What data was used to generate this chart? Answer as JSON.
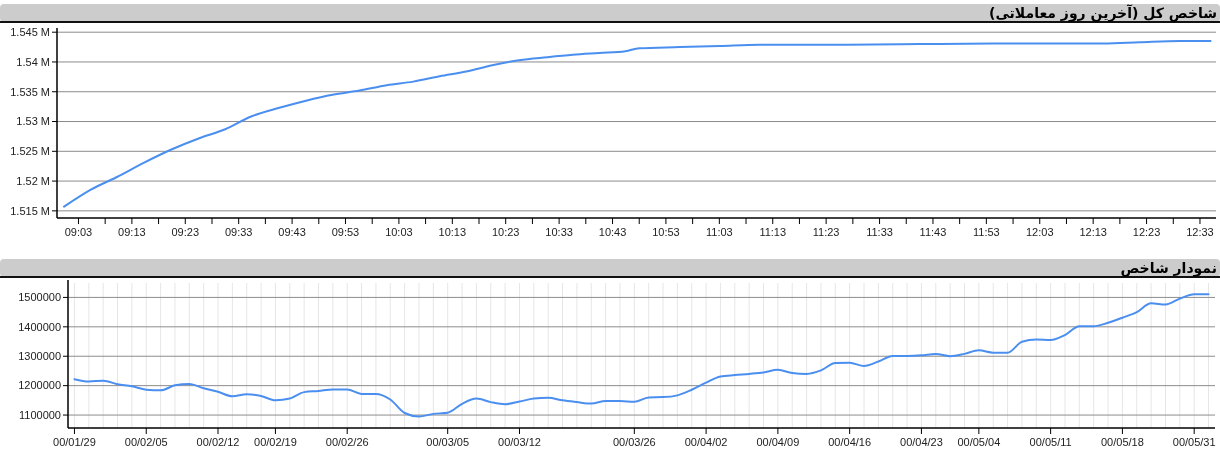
{
  "chart_data": [
    {
      "type": "line",
      "title": "شاخص کل (آخرین روز معاملاتی)",
      "grid": "y",
      "xlim": [
        8.983,
        12.6
      ],
      "x": [
        9.005,
        9.09,
        9.167,
        9.255,
        9.34,
        9.427,
        9.508,
        9.587,
        9.677,
        9.76,
        9.843,
        9.927,
        10.012,
        10.095,
        10.177,
        10.26,
        10.345,
        10.425,
        10.513,
        10.593,
        10.675,
        10.757,
        10.8,
        10.927,
        11.052,
        11.177,
        11.427,
        11.677,
        11.927,
        12.25,
        12.362,
        12.487,
        12.583
      ],
      "series": [
        {
          "color": "#4a8ff0",
          "values": [
            1515700,
            1518600,
            1520600,
            1523100,
            1525300,
            1527200,
            1528700,
            1530800,
            1532300,
            1533500,
            1534500,
            1535200,
            1536100,
            1536700,
            1537600,
            1538400,
            1539500,
            1540300,
            1540800,
            1541200,
            1541500,
            1541800,
            1542300,
            1542500,
            1542700,
            1542900,
            1542900,
            1543000,
            1543100,
            1543100,
            1543300,
            1543500,
            1543500
          ]
        }
      ],
      "xticks": [
        {
          "value": 9.05,
          "label": "09:03"
        },
        {
          "value": 9.1333,
          "label": null
        },
        {
          "value": 9.2167,
          "label": "09:13"
        },
        {
          "value": 9.3,
          "label": null
        },
        {
          "value": 9.3833,
          "label": "09:23"
        },
        {
          "value": 9.4667,
          "label": null
        },
        {
          "value": 9.55,
          "label": "09:33"
        },
        {
          "value": 9.6333,
          "label": null
        },
        {
          "value": 9.7167,
          "label": "09:43"
        },
        {
          "value": 9.8,
          "label": null
        },
        {
          "value": 9.8833,
          "label": "09:53"
        },
        {
          "value": 9.9667,
          "label": null
        },
        {
          "value": 10.05,
          "label": "10:03"
        },
        {
          "value": 10.1333,
          "label": null
        },
        {
          "value": 10.2167,
          "label": "10:13"
        },
        {
          "value": 10.3,
          "label": null
        },
        {
          "value": 10.3833,
          "label": "10:23"
        },
        {
          "value": 10.4667,
          "label": null
        },
        {
          "value": 10.55,
          "label": "10:33"
        },
        {
          "value": 10.6333,
          "label": null
        },
        {
          "value": 10.7167,
          "label": "10:43"
        },
        {
          "value": 10.8,
          "label": null
        },
        {
          "value": 10.8833,
          "label": "10:53"
        },
        {
          "value": 10.9667,
          "label": null
        },
        {
          "value": 11.05,
          "label": "11:03"
        },
        {
          "value": 11.1333,
          "label": null
        },
        {
          "value": 11.2167,
          "label": "11:13"
        },
        {
          "value": 11.3,
          "label": null
        },
        {
          "value": 11.3833,
          "label": "11:23"
        },
        {
          "value": 11.4667,
          "label": null
        },
        {
          "value": 11.55,
          "label": "11:33"
        },
        {
          "value": 11.6333,
          "label": null
        },
        {
          "value": 11.7167,
          "label": "11:43"
        },
        {
          "value": 11.8,
          "label": null
        },
        {
          "value": 11.8833,
          "label": "11:53"
        },
        {
          "value": 11.9667,
          "label": null
        },
        {
          "value": 12.05,
          "label": "12:03"
        },
        {
          "value": 12.1333,
          "label": null
        },
        {
          "value": 12.2167,
          "label": "12:13"
        },
        {
          "value": 12.3,
          "label": null
        },
        {
          "value": 12.3833,
          "label": "12:23"
        },
        {
          "value": 12.4667,
          "label": null
        },
        {
          "value": 12.55,
          "label": "12:33"
        }
      ],
      "ylim": [
        1513800,
        1545200
      ],
      "yticks": [
        {
          "value": 1515000,
          "label": "1.515 M"
        },
        {
          "value": 1520000,
          "label": "1.52 M"
        },
        {
          "value": 1525000,
          "label": "1.525 M"
        },
        {
          "value": 1530000,
          "label": "1.53 M"
        },
        {
          "value": 1535000,
          "label": "1.535 M"
        },
        {
          "value": 1540000,
          "label": "1.54 M"
        },
        {
          "value": 1545000,
          "label": "1.545 M"
        }
      ]
    },
    {
      "type": "line",
      "title": "نمودار شاخص",
      "grid": true,
      "categories": [
        "00/01/29",
        null,
        null,
        null,
        null,
        "00/02/05",
        null,
        null,
        null,
        null,
        "00/02/12",
        null,
        null,
        null,
        "00/02/19",
        null,
        null,
        null,
        null,
        "00/02/26",
        null,
        null,
        null,
        null,
        null,
        null,
        "00/03/05",
        null,
        null,
        null,
        null,
        "00/03/12",
        null,
        null,
        null,
        null,
        null,
        null,
        null,
        "00/03/26",
        null,
        null,
        null,
        null,
        "00/04/02",
        null,
        null,
        null,
        null,
        "00/04/09",
        null,
        null,
        null,
        null,
        "00/04/16",
        null,
        null,
        null,
        null,
        "00/04/23",
        null,
        null,
        null,
        "00/05/04",
        null,
        null,
        null,
        null,
        "00/05/11",
        null,
        null,
        null,
        null,
        "00/05/18",
        null,
        null,
        null,
        null,
        "00/05/31",
        null
      ],
      "series": [
        {
          "color": "#4a8ff0",
          "values": [
            1222000,
            1214000,
            1217000,
            1205000,
            1198000,
            1186000,
            1184000,
            1201000,
            1206000,
            1191000,
            1179000,
            1164000,
            1171000,
            1165000,
            1150000,
            1156000,
            1178000,
            1182000,
            1187000,
            1187000,
            1172000,
            1172000,
            1153000,
            1107000,
            1095000,
            1104000,
            1108000,
            1138000,
            1156000,
            1144000,
            1137000,
            1146000,
            1156000,
            1159000,
            1150000,
            1144000,
            1139000,
            1148000,
            1148000,
            1145000,
            1160000,
            1161000,
            1167000,
            1186000,
            1210000,
            1231000,
            1236000,
            1240000,
            1245000,
            1254000,
            1243000,
            1240000,
            1252000,
            1277000,
            1278000,
            1267000,
            1282000,
            1301000,
            1301000,
            1303000,
            1308000,
            1300000,
            1308000,
            1320000,
            1312000,
            1312000,
            1349000,
            1357000,
            1355000,
            1372000,
            1402000,
            1402000,
            1414000,
            1431000,
            1450000,
            1480000,
            1476000,
            1496000,
            1511000,
            1511000
          ]
        }
      ],
      "ylim": [
        1056000,
        1549000
      ],
      "yticks": [
        1100000,
        1200000,
        1300000,
        1400000,
        1500000
      ]
    }
  ]
}
